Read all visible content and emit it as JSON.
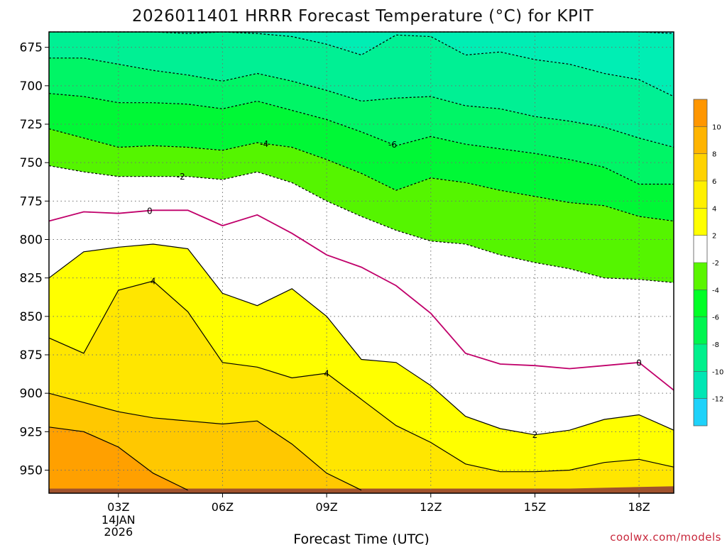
{
  "chart_data": {
    "type": "contour",
    "title": "2026011401 HRRR Forecast Temperature (°C) for KPIT",
    "xlabel": "Forecast Time (UTC)",
    "ylabel": "",
    "credit": "coolwx.com/models",
    "x_hours": [
      1,
      2,
      3,
      4,
      5,
      6,
      7,
      8,
      9,
      10,
      11,
      12,
      13,
      14,
      15,
      16,
      17,
      18,
      19
    ],
    "xlim": [
      1,
      19
    ],
    "x_ticks": [
      {
        "hour": 3,
        "label": "03Z",
        "sub": [
          "14JAN",
          "2026"
        ]
      },
      {
        "hour": 6,
        "label": "06Z"
      },
      {
        "hour": 9,
        "label": "09Z"
      },
      {
        "hour": 12,
        "label": "12Z"
      },
      {
        "hour": 15,
        "label": "15Z"
      },
      {
        "hour": 18,
        "label": "18Z"
      }
    ],
    "ylim_hpa": [
      665,
      965
    ],
    "y_ticks": [
      675,
      700,
      725,
      750,
      775,
      800,
      825,
      850,
      875,
      900,
      925,
      950
    ],
    "ground_top_hpa": [
      962,
      962,
      962,
      962,
      962,
      962,
      962,
      962,
      962,
      962,
      962,
      962,
      962,
      962,
      962,
      962,
      961.5,
      961,
      960.5
    ],
    "isotherms": [
      {
        "value": -12,
        "hpa": [
          null,
          665,
          665,
          665,
          665,
          665,
          665,
          665,
          665,
          665,
          665,
          665,
          665,
          665,
          665,
          665,
          665,
          665,
          666
        ]
      },
      {
        "value": -10,
        "hpa": [
          664,
          664,
          664,
          665,
          666,
          664,
          666,
          668,
          673,
          680,
          667,
          668,
          680,
          678,
          683,
          686,
          692,
          696,
          707
        ]
      },
      {
        "value": -8,
        "hpa": [
          682,
          682,
          686,
          690,
          693,
          697,
          692,
          697,
          703,
          710,
          708,
          707,
          713,
          715,
          720,
          723,
          727,
          734,
          740
        ]
      },
      {
        "value": -6,
        "hpa": [
          705,
          707,
          711,
          711,
          712,
          715,
          710,
          716,
          722,
          730,
          739,
          733,
          738,
          741,
          744,
          748,
          753,
          764,
          764
        ]
      },
      {
        "value": -4,
        "hpa": [
          728,
          734,
          740,
          739,
          740,
          742,
          737,
          740,
          748,
          757,
          768,
          760,
          763,
          768,
          772,
          776,
          778,
          785,
          788
        ]
      },
      {
        "value": -2,
        "hpa": [
          752,
          756,
          759,
          759,
          759,
          761,
          756,
          763,
          775,
          785,
          794,
          801,
          803,
          810,
          815,
          819,
          825,
          826,
          828
        ]
      },
      {
        "value": 0,
        "hpa": [
          788,
          782,
          783,
          781,
          781,
          791,
          784,
          796,
          810,
          818,
          830,
          848,
          874,
          881,
          882,
          884,
          882,
          880,
          898
        ]
      },
      {
        "value": 2,
        "hpa": [
          825,
          808,
          805,
          803,
          806,
          835,
          843,
          832,
          850,
          878,
          880,
          895,
          915,
          923,
          927,
          924,
          917,
          914,
          924
        ]
      },
      {
        "value": 4,
        "hpa": [
          864,
          874,
          833,
          827,
          847,
          880,
          883,
          890,
          887,
          904,
          921,
          932,
          946,
          951,
          951,
          950,
          945,
          943,
          948
        ]
      },
      {
        "value": 6,
        "hpa": [
          900,
          906,
          912,
          916,
          918,
          920,
          918,
          933,
          952,
          963,
          null,
          null,
          null,
          null,
          null,
          null,
          null,
          null,
          null
        ]
      },
      {
        "value": 8,
        "hpa": [
          922,
          925,
          935,
          952,
          963,
          null,
          null,
          null,
          null,
          null,
          null,
          null,
          null,
          null,
          null,
          null,
          null,
          null,
          null
        ]
      }
    ],
    "isotherm_labels": [
      {
        "text": "-4",
        "value": -4,
        "hour": 7.2
      },
      {
        "text": "-6",
        "value": -6,
        "hour": 10.9
      },
      {
        "text": "-2",
        "value": -2,
        "hour": 4.8
      },
      {
        "text": "0",
        "value": 0,
        "hour": 3.9
      },
      {
        "text": "0",
        "value": 0,
        "hour": 18.0
      },
      {
        "text": "4",
        "value": 4,
        "hour": 4.0
      },
      {
        "text": "4",
        "value": 4,
        "hour": 9.0
      },
      {
        "text": "2",
        "value": 2,
        "hour": 15.0
      }
    ],
    "colorbar": {
      "levels": [
        -14,
        -12,
        -10,
        -8,
        -6,
        -4,
        -2,
        2,
        4,
        6,
        8,
        10,
        12
      ],
      "colors": [
        "#1ed2fa",
        "#00e6b4",
        "#00f08c",
        "#00f550",
        "#00ff26",
        "#5af500",
        "#ffffff",
        "#ffff00",
        "#fff000",
        "#ffd200",
        "#ffb400",
        "#ff9600"
      ],
      "tick_labels": [
        "-12",
        "-10",
        "-8",
        "-6",
        "-4",
        "-2",
        "2",
        "4",
        "6",
        "8",
        "10"
      ]
    },
    "ground_color": "#a0522d",
    "zero_line_color": "#c0006a"
  }
}
